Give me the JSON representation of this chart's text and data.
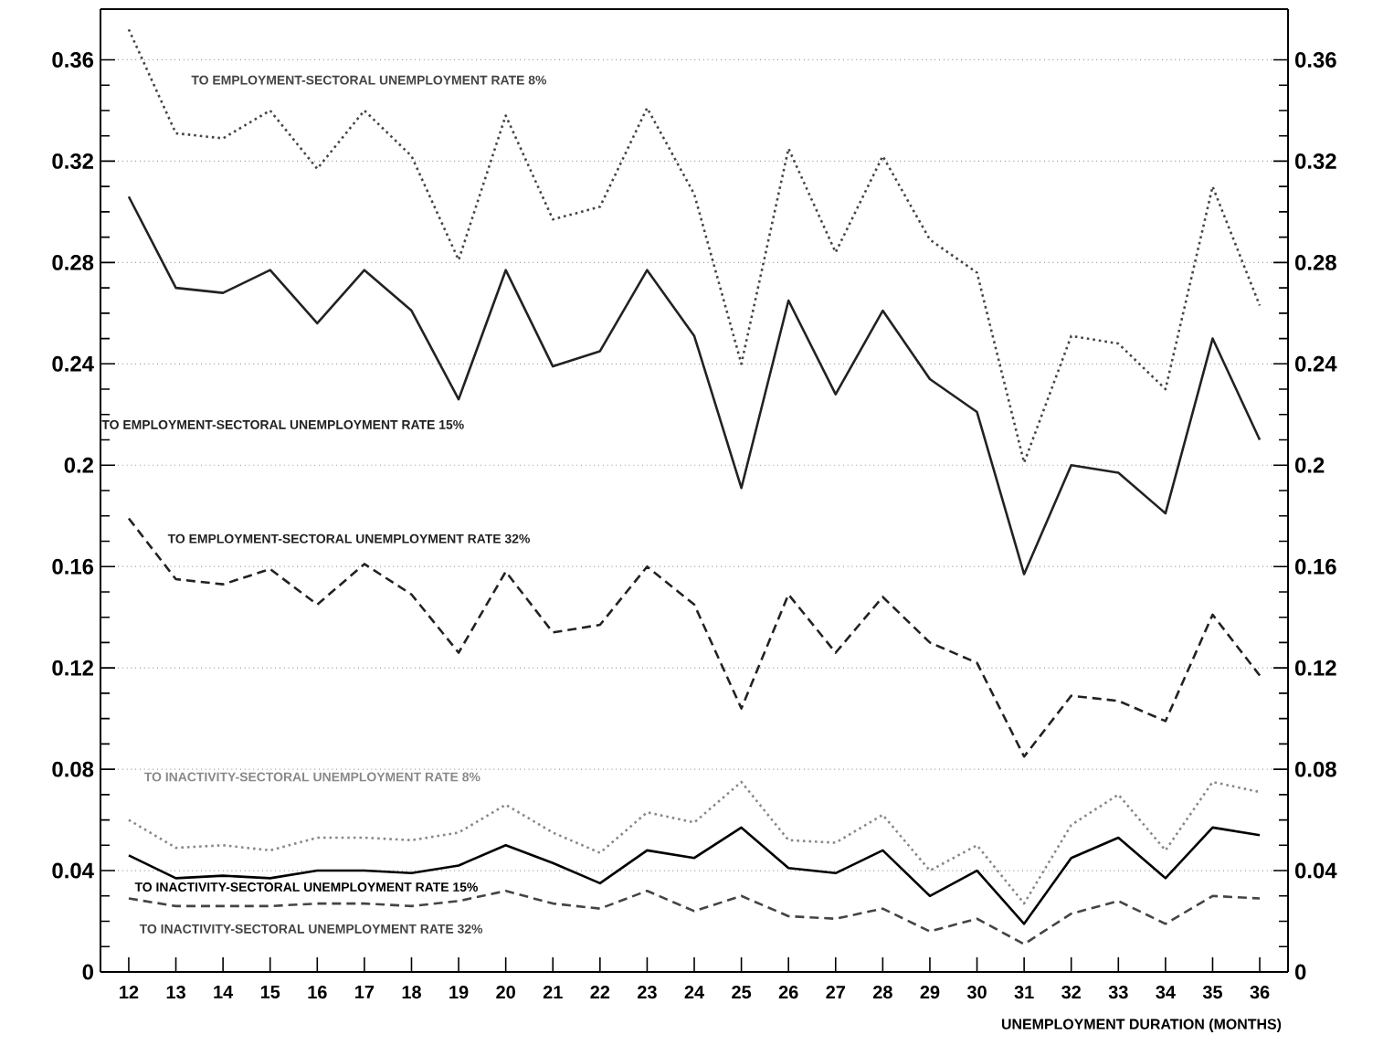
{
  "chart_data": {
    "type": "line",
    "xlabel": "UNEMPLOYMENT DURATION (MONTHS)",
    "x": [
      12,
      13,
      14,
      15,
      16,
      17,
      18,
      19,
      20,
      21,
      22,
      23,
      24,
      25,
      26,
      27,
      28,
      29,
      30,
      31,
      32,
      33,
      34,
      35,
      36
    ],
    "xlim": [
      11.4,
      36.6
    ],
    "xticks": [
      12,
      13,
      14,
      15,
      16,
      17,
      18,
      19,
      20,
      21,
      22,
      23,
      24,
      25,
      26,
      27,
      28,
      29,
      30,
      31,
      32,
      33,
      34,
      35,
      36
    ],
    "ylim": [
      0,
      0.38
    ],
    "yticks": [
      0,
      0.04,
      0.08,
      0.12,
      0.16,
      0.2,
      0.24,
      0.28,
      0.32,
      0.36
    ],
    "y2lim": [
      0,
      0.38
    ],
    "y2ticks": [
      0,
      0.04,
      0.08,
      0.12,
      0.16,
      0.2,
      0.24,
      0.28,
      0.32,
      0.36
    ],
    "grid": "y",
    "series": [
      {
        "name": "TO EMPLOYMENT-SECTORAL UNEMPLOYMENT RATE 8%",
        "color": "#444444",
        "line_style": "dotted",
        "values": [
          0.372,
          0.331,
          0.329,
          0.34,
          0.317,
          0.34,
          0.322,
          0.281,
          0.338,
          0.297,
          0.302,
          0.341,
          0.307,
          0.24,
          0.325,
          0.284,
          0.322,
          0.289,
          0.276,
          0.201,
          0.251,
          0.248,
          0.23,
          0.31,
          0.263
        ]
      },
      {
        "name": "TO EMPLOYMENT-SECTORAL UNEMPLOYMENT RATE 15%",
        "color": "#222222",
        "line_style": "solid",
        "values": [
          0.306,
          0.27,
          0.268,
          0.277,
          0.256,
          0.277,
          0.261,
          0.226,
          0.277,
          0.239,
          0.245,
          0.277,
          0.251,
          0.191,
          0.265,
          0.228,
          0.261,
          0.234,
          0.221,
          0.157,
          0.2,
          0.197,
          0.181,
          0.25,
          0.21
        ]
      },
      {
        "name": "TO EMPLOYMENT-SECTORAL UNEMPLOYMENT RATE 32%",
        "color": "#222222",
        "line_style": "dashed",
        "values": [
          0.179,
          0.155,
          0.153,
          0.159,
          0.145,
          0.161,
          0.149,
          0.126,
          0.158,
          0.134,
          0.137,
          0.16,
          0.145,
          0.104,
          0.149,
          0.126,
          0.148,
          0.13,
          0.122,
          0.085,
          0.109,
          0.107,
          0.099,
          0.141,
          0.117
        ]
      },
      {
        "name": "TO INACTIVITY-SECTORAL UNEMPLOYMENT RATE 8%",
        "color": "#888888",
        "line_style": "dotted",
        "values": [
          0.06,
          0.049,
          0.05,
          0.048,
          0.053,
          0.053,
          0.052,
          0.055,
          0.066,
          0.055,
          0.047,
          0.063,
          0.059,
          0.075,
          0.052,
          0.051,
          0.062,
          0.04,
          0.05,
          0.027,
          0.058,
          0.07,
          0.048,
          0.075,
          0.071
        ]
      },
      {
        "name": "TO INACTIVITY-SECTORAL UNEMPLOYMENT RATE 15%",
        "color": "#000000",
        "line_style": "solid",
        "values": [
          0.046,
          0.037,
          0.038,
          0.037,
          0.04,
          0.04,
          0.039,
          0.042,
          0.05,
          0.043,
          0.035,
          0.048,
          0.045,
          0.057,
          0.041,
          0.039,
          0.048,
          0.03,
          0.04,
          0.019,
          0.045,
          0.053,
          0.037,
          0.057,
          0.054
        ]
      },
      {
        "name": "TO INACTIVITY-SECTORAL UNEMPLOYMENT RATE 32%",
        "color": "#444444",
        "line_style": "dashed",
        "values": [
          0.029,
          0.026,
          0.026,
          0.026,
          0.027,
          0.027,
          0.026,
          0.028,
          0.032,
          0.027,
          0.025,
          0.032,
          0.024,
          0.03,
          0.022,
          0.021,
          0.025,
          0.016,
          0.021,
          0.011,
          0.023,
          0.028,
          0.019,
          0.03,
          0.029
        ]
      }
    ]
  }
}
